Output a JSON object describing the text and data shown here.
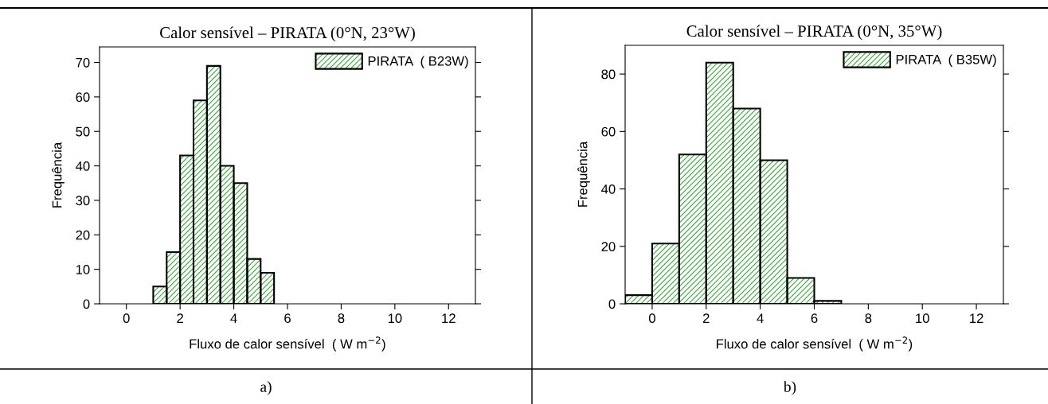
{
  "chart_data": [
    {
      "type": "histogram",
      "title": "Calor sensível – PIRATA (0°N, 23°W)",
      "xlabel": "Fluxo de calor sensível  ( W m$^{−2}$)",
      "ylabel": "Frequência",
      "bins": [
        1,
        1.5,
        2,
        2.5,
        3,
        3.5,
        4,
        4.5,
        5,
        5.5
      ],
      "series": [
        {
          "name": "PIRATA  ( B23W)",
          "color": "#33aa33",
          "values": [
            5,
            15,
            43,
            59,
            69,
            40,
            35,
            13,
            9
          ]
        }
      ],
      "xlim": [
        -1,
        13
      ],
      "xticks": [
        0,
        2,
        4,
        6,
        8,
        10,
        12
      ],
      "ylim": [
        0,
        74.5
      ],
      "yticks": [
        0,
        10,
        20,
        30,
        40,
        50,
        60,
        70
      ],
      "grid": false,
      "legend": "top right",
      "annotations": [
        "a)"
      ]
    },
    {
      "type": "histogram",
      "title": "Calor sensível – PIRATA (0°N, 35°W)",
      "xlabel": "Fluxo de calor sensível  ( W m$^{−2}$)",
      "ylabel": "Frequência",
      "bins": [
        -1,
        0,
        1,
        2,
        3,
        4,
        5,
        6,
        7
      ],
      "series": [
        {
          "name": "PIRATA  ( B35W)",
          "color": "#33aa33",
          "values": [
            3,
            21,
            52,
            84,
            68,
            50,
            9,
            1
          ]
        }
      ],
      "xlim": [
        -1,
        13
      ],
      "xticks": [
        0,
        2,
        4,
        6,
        8,
        10,
        12
      ],
      "ylim": [
        0,
        90
      ],
      "yticks": [
        0,
        20,
        40,
        60,
        80
      ],
      "grid": false,
      "legend": "top right",
      "annotations": [
        "b)"
      ]
    }
  ]
}
